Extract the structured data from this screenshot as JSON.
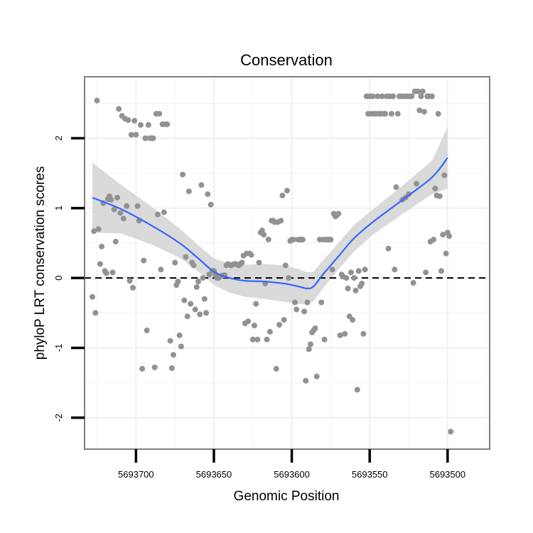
{
  "chart_data": {
    "type": "scatter",
    "title": "Conservation",
    "xlabel": "Genomic Position",
    "ylabel": "phyloP LRT conservation scores",
    "xlim": [
      5693733,
      5693473
    ],
    "x_reversed": true,
    "ylim": [
      -2.45,
      2.88
    ],
    "x_ticks": [
      5693700,
      5693650,
      5693600,
      5693550,
      5693500
    ],
    "y_ticks": [
      -2,
      -1,
      0,
      1,
      2
    ],
    "grid": true,
    "reference_line": {
      "y": 0,
      "style": "dashed",
      "color": "#000000"
    },
    "colors": {
      "points": "#929292",
      "smooth_line": "#3366ff",
      "confidence_band": "#d3d3d3",
      "panel_border": "#7f7f7f",
      "grid": "#f2f2f2"
    },
    "series": [
      {
        "name": "phyloP scores",
        "points": [
          [
            5693728,
            -0.27
          ],
          [
            5693727,
            0.67
          ],
          [
            5693726,
            -0.5
          ],
          [
            5693725,
            2.54
          ],
          [
            5693724,
            0.7
          ],
          [
            5693723,
            0.2
          ],
          [
            5693722,
            0.45
          ],
          [
            5693721,
            1.07
          ],
          [
            5693720,
            0.1
          ],
          [
            5693719,
            0.07
          ],
          [
            5693718,
            1.13
          ],
          [
            5693717,
            1.17
          ],
          [
            5693716,
            1.12
          ],
          [
            5693715,
            0.08
          ],
          [
            5693714,
            0.98
          ],
          [
            5693713,
            0.52
          ],
          [
            5693712,
            1.15
          ],
          [
            5693711,
            2.42
          ],
          [
            5693710,
            0.93
          ],
          [
            5693709,
            2.32
          ],
          [
            5693708,
            0.85
          ],
          [
            5693707,
            2.28
          ],
          [
            5693706,
            1.03
          ],
          [
            5693705,
            2.26
          ],
          [
            5693704,
            -0.04
          ],
          [
            5693703,
            2.05
          ],
          [
            5693702,
            -0.14
          ],
          [
            5693701,
            2.25
          ],
          [
            5693700,
            2.05
          ],
          [
            5693699,
            1.03
          ],
          [
            5693698,
            0.82
          ],
          [
            5693697,
            2.19
          ],
          [
            5693696,
            -1.3
          ],
          [
            5693695,
            0.25
          ],
          [
            5693694,
            2.0
          ],
          [
            5693693,
            -0.75
          ],
          [
            5693692,
            2.19
          ],
          [
            5693691,
            2.0
          ],
          [
            5693690,
            2.0
          ],
          [
            5693689,
            2.0
          ],
          [
            5693688,
            -1.28
          ],
          [
            5693687,
            2.35
          ],
          [
            5693686,
            0.91
          ],
          [
            5693685,
            2.35
          ],
          [
            5693684,
            0.12
          ],
          [
            5693683,
            2.2
          ],
          [
            5693682,
            0.94
          ],
          [
            5693681,
            2.2
          ],
          [
            5693680,
            2.2
          ],
          [
            5693678,
            -0.9
          ],
          [
            5693677,
            -1.29
          ],
          [
            5693676,
            -1.1
          ],
          [
            5693675,
            0.22
          ],
          [
            5693674,
            -0.1
          ],
          [
            5693673,
            -0.05
          ],
          [
            5693672,
            -0.82
          ],
          [
            5693671,
            -0.98
          ],
          [
            5693670,
            1.48
          ],
          [
            5693669,
            -0.32
          ],
          [
            5693668,
            0.3
          ],
          [
            5693667,
            -0.55
          ],
          [
            5693666,
            1.24
          ],
          [
            5693665,
            -0.37
          ],
          [
            5693664,
            0.22
          ],
          [
            5693663,
            0.18
          ],
          [
            5693662,
            -0.45
          ],
          [
            5693661,
            -0.13
          ],
          [
            5693660,
            -0.05
          ],
          [
            5693659,
            -0.52
          ],
          [
            5693658,
            1.33
          ],
          [
            5693657,
            0.0
          ],
          [
            5693656,
            -0.3
          ],
          [
            5693655,
            -0.5
          ],
          [
            5693654,
            1.2
          ],
          [
            5693653,
            0.05
          ],
          [
            5693652,
            1.05
          ],
          [
            5693651,
            0.1
          ],
          [
            5693650,
            0.1
          ],
          [
            5693649,
            0.05
          ],
          [
            5693648,
            0.0
          ],
          [
            5693647,
            0.0
          ],
          [
            5693646,
            0.02
          ],
          [
            5693645,
            0.03
          ],
          [
            5693644,
            0.04
          ],
          [
            5693643,
            0.04
          ],
          [
            5693642,
            0.18
          ],
          [
            5693641,
            0.2
          ],
          [
            5693640,
            0.19
          ],
          [
            5693639,
            0.18
          ],
          [
            5693638,
            0.19
          ],
          [
            5693637,
            0.2
          ],
          [
            5693636,
            0.2
          ],
          [
            5693635,
            0.19
          ],
          [
            5693634,
            0.18
          ],
          [
            5693633,
            0.2
          ],
          [
            5693632,
            0.22
          ],
          [
            5693631,
            0.32
          ],
          [
            5693630,
            -0.65
          ],
          [
            5693629,
            0.35
          ],
          [
            5693628,
            -0.62
          ],
          [
            5693627,
            0.35
          ],
          [
            5693626,
            0.33
          ],
          [
            5693625,
            -0.88
          ],
          [
            5693624,
            -0.68
          ],
          [
            5693623,
            -0.37
          ],
          [
            5693622,
            -0.88
          ],
          [
            5693621,
            0.22
          ],
          [
            5693620,
            0.65
          ],
          [
            5693619,
            0.68
          ],
          [
            5693618,
            0.62
          ],
          [
            5693617,
            -0.08
          ],
          [
            5693616,
            -0.88
          ],
          [
            5693615,
            0.55
          ],
          [
            5693614,
            -0.77
          ],
          [
            5693613,
            0.82
          ],
          [
            5693612,
            0.82
          ],
          [
            5693611,
            0.8
          ],
          [
            5693610,
            -1.3
          ],
          [
            5693609,
            0.8
          ],
          [
            5693608,
            -0.67
          ],
          [
            5693607,
            0.82
          ],
          [
            5693606,
            1.18
          ],
          [
            5693605,
            -0.6
          ],
          [
            5693604,
            0.18
          ],
          [
            5693603,
            1.25
          ],
          [
            5693602,
            0.0
          ],
          [
            5693601,
            0.53
          ],
          [
            5693600,
            0.55
          ],
          [
            5693599,
            0.55
          ],
          [
            5693598,
            -0.35
          ],
          [
            5693597,
            -0.45
          ],
          [
            5693596,
            0.55
          ],
          [
            5693595,
            0.55
          ],
          [
            5693594,
            0.55
          ],
          [
            5693593,
            0.55
          ],
          [
            5693592,
            -0.48
          ],
          [
            5693591,
            -1.47
          ],
          [
            5693590,
            -0.35
          ],
          [
            5693589,
            -1.02
          ],
          [
            5693588,
            -0.95
          ],
          [
            5693587,
            -0.78
          ],
          [
            5693586,
            -0.75
          ],
          [
            5693585,
            -0.72
          ],
          [
            5693584,
            -1.41
          ],
          [
            5693582,
            0.55
          ],
          [
            5693581,
            -0.35
          ],
          [
            5693580,
            0.55
          ],
          [
            5693579,
            -0.88
          ],
          [
            5693578,
            0.55
          ],
          [
            5693577,
            0.55
          ],
          [
            5693576,
            0.55
          ],
          [
            5693575,
            0.55
          ],
          [
            5693574,
            0.12
          ],
          [
            5693573,
            0.92
          ],
          [
            5693572,
            0.88
          ],
          [
            5693571,
            0.9
          ],
          [
            5693570,
            0.92
          ],
          [
            5693569,
            -0.82
          ],
          [
            5693568,
            0.05
          ],
          [
            5693567,
            0.02
          ],
          [
            5693566,
            -0.8
          ],
          [
            5693565,
            0.0
          ],
          [
            5693564,
            -0.15
          ],
          [
            5693563,
            -0.55
          ],
          [
            5693562,
            0.08
          ],
          [
            5693561,
            -0.6
          ],
          [
            5693560,
            0.0
          ],
          [
            5693559,
            -0.18
          ],
          [
            5693558,
            -1.6
          ],
          [
            5693557,
            0.1
          ],
          [
            5693556,
            -0.12
          ],
          [
            5693555,
            -0.08
          ],
          [
            5693554,
            -0.8
          ],
          [
            5693553,
            0.12
          ],
          [
            5693552,
            2.6
          ],
          [
            5693551,
            2.35
          ],
          [
            5693550,
            2.6
          ],
          [
            5693549,
            2.35
          ],
          [
            5693548,
            2.6
          ],
          [
            5693547,
            2.35
          ],
          [
            5693546,
            2.35
          ],
          [
            5693545,
            2.6
          ],
          [
            5693544,
            2.35
          ],
          [
            5693543,
            2.35
          ],
          [
            5693542,
            2.6
          ],
          [
            5693541,
            2.35
          ],
          [
            5693540,
            2.35
          ],
          [
            5693539,
            2.6
          ],
          [
            5693538,
            0.42
          ],
          [
            5693537,
            2.6
          ],
          [
            5693536,
            2.35
          ],
          [
            5693535,
            2.6
          ],
          [
            5693534,
            0.12
          ],
          [
            5693533,
            1.3
          ],
          [
            5693532,
            2.35
          ],
          [
            5693531,
            2.6
          ],
          [
            5693530,
            2.6
          ],
          [
            5693529,
            1.12
          ],
          [
            5693528,
            2.6
          ],
          [
            5693527,
            1.15
          ],
          [
            5693526,
            2.6
          ],
          [
            5693525,
            1.2
          ],
          [
            5693524,
            2.6
          ],
          [
            5693523,
            2.6
          ],
          [
            5693522,
            -0.07
          ],
          [
            5693521,
            2.67
          ],
          [
            5693520,
            1.35
          ],
          [
            5693519,
            2.67
          ],
          [
            5693518,
            2.4
          ],
          [
            5693517,
            2.6
          ],
          [
            5693516,
            2.67
          ],
          [
            5693515,
            2.38
          ],
          [
            5693514,
            0.08
          ],
          [
            5693513,
            2.6
          ],
          [
            5693512,
            2.6
          ],
          [
            5693511,
            0.52
          ],
          [
            5693510,
            2.6
          ],
          [
            5693509,
            0.55
          ],
          [
            5693508,
            1.28
          ],
          [
            5693507,
            1.18
          ],
          [
            5693506,
            2.35
          ],
          [
            5693505,
            1.17
          ],
          [
            5693504,
            0.1
          ],
          [
            5693503,
            0.62
          ],
          [
            5693502,
            1.47
          ],
          [
            5693501,
            0.35
          ],
          [
            5693500,
            0.65
          ],
          [
            5693499,
            0.6
          ],
          [
            5693498,
            -2.2
          ]
        ]
      },
      {
        "name": "loess fit",
        "x": [
          5693728,
          5693710,
          5693690,
          5693672,
          5693660,
          5693650,
          5693640,
          5693630,
          5693618,
          5693605,
          5693596,
          5693590,
          5693586,
          5693580,
          5693570,
          5693560,
          5693548,
          5693530,
          5693510,
          5693500
        ],
        "y": [
          1.15,
          0.99,
          0.75,
          0.5,
          0.28,
          0.09,
          0.0,
          -0.04,
          -0.05,
          -0.08,
          -0.12,
          -0.15,
          -0.12,
          0.05,
          0.31,
          0.57,
          0.8,
          1.1,
          1.44,
          1.72
        ],
        "ci_lower": [
          0.65,
          0.64,
          0.48,
          0.29,
          0.09,
          -0.1,
          -0.21,
          -0.27,
          -0.3,
          -0.34,
          -0.37,
          -0.38,
          -0.33,
          -0.15,
          0.12,
          0.38,
          0.62,
          0.9,
          1.2,
          1.28
        ],
        "ci_upper": [
          1.65,
          1.34,
          1.02,
          0.71,
          0.47,
          0.28,
          0.21,
          0.19,
          0.2,
          0.18,
          0.13,
          0.08,
          0.09,
          0.25,
          0.5,
          0.76,
          0.98,
          1.3,
          1.68,
          2.16
        ]
      }
    ]
  }
}
